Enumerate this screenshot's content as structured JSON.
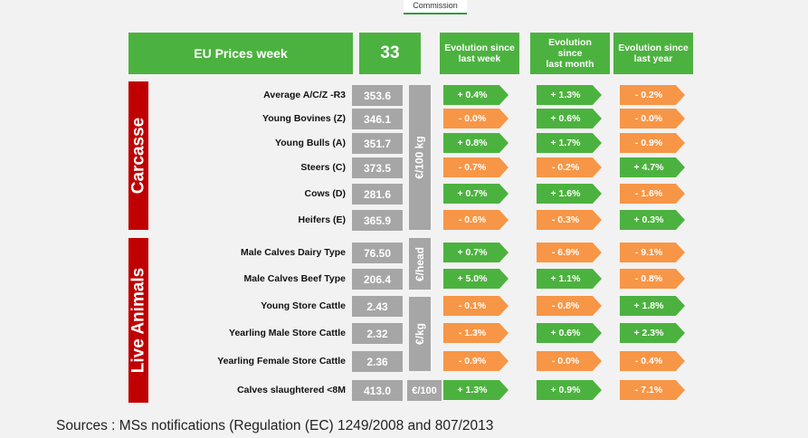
{
  "header": {
    "commission": "Commission",
    "title": "EU Prices week",
    "week": "33",
    "evo_week": "Evolution since\nlast week",
    "evo_month": "Evolution\nsince\nlast month",
    "evo_year": "Evolution since\nlast year"
  },
  "sections": {
    "carcasse": "Carcasse",
    "live": "Live Animals"
  },
  "units": {
    "kg100": "€/100 kg",
    "head": "€/head",
    "kg": "€/kg",
    "per100": "€/100"
  },
  "rows": [
    {
      "label": "Average  A/C/Z -R3",
      "value": "353.6",
      "week": "+ 0.4%",
      "week_color": "green",
      "month": "+ 1.3%",
      "month_color": "green",
      "year": "- 0.2%",
      "year_color": "orange"
    },
    {
      "label": "Young Bovines (Z)",
      "value": "346.1",
      "week": "- 0.0%",
      "week_color": "orange",
      "month": "+ 0.6%",
      "month_color": "green",
      "year": "- 0.0%",
      "year_color": "orange"
    },
    {
      "label": "Young Bulls (A)",
      "value": "351.7",
      "week": "+ 0.8%",
      "week_color": "green",
      "month": "+ 1.7%",
      "month_color": "green",
      "year": "- 0.9%",
      "year_color": "orange"
    },
    {
      "label": "Steers (C)",
      "value": "373.5",
      "week": "- 0.7%",
      "week_color": "orange",
      "month": "- 0.2%",
      "month_color": "orange",
      "year": "+ 4.7%",
      "year_color": "green"
    },
    {
      "label": "Cows (D)",
      "value": "281.6",
      "week": "+ 0.7%",
      "week_color": "green",
      "month": "+ 1.6%",
      "month_color": "green",
      "year": "- 1.6%",
      "year_color": "orange"
    },
    {
      "label": "Heifers (E)",
      "value": "365.9",
      "week": "- 0.6%",
      "week_color": "orange",
      "month": "- 0.3%",
      "month_color": "orange",
      "year": "+ 0.3%",
      "year_color": "green"
    },
    {
      "label": "Male Calves Dairy Type",
      "value": "76.50",
      "week": "+ 0.7%",
      "week_color": "green",
      "month": "- 6.9%",
      "month_color": "orange",
      "year": "- 9.1%",
      "year_color": "orange"
    },
    {
      "label": "Male Calves Beef Type",
      "value": "206.4",
      "week": "+ 5.0%",
      "week_color": "green",
      "month": "+ 1.1%",
      "month_color": "green",
      "year": "- 0.8%",
      "year_color": "orange"
    },
    {
      "label": "Young Store Cattle",
      "value": "2.43",
      "week": "- 0.1%",
      "week_color": "orange",
      "month": "- 0.8%",
      "month_color": "orange",
      "year": "+ 1.8%",
      "year_color": "green"
    },
    {
      "label": "Yearling Male Store Cattle",
      "value": "2.32",
      "week": "- 1.3%",
      "week_color": "orange",
      "month": "+ 0.6%",
      "month_color": "green",
      "year": "+ 2.3%",
      "year_color": "green"
    },
    {
      "label": "Yearling Female Store Cattle",
      "value": "2.36",
      "week": "- 0.9%",
      "week_color": "orange",
      "month": "- 0.0%",
      "month_color": "orange",
      "year": "- 0.4%",
      "year_color": "orange"
    },
    {
      "label": "Calves slaughtered <8M",
      "value": "413.0",
      "week": "+ 1.3%",
      "week_color": "green",
      "month": "+ 0.9%",
      "month_color": "green",
      "year": "- 7.1%",
      "year_color": "orange"
    }
  ],
  "sources": "Sources : MSs notifications (Regulation (EC) 1249/2008 and 807/2013"
}
